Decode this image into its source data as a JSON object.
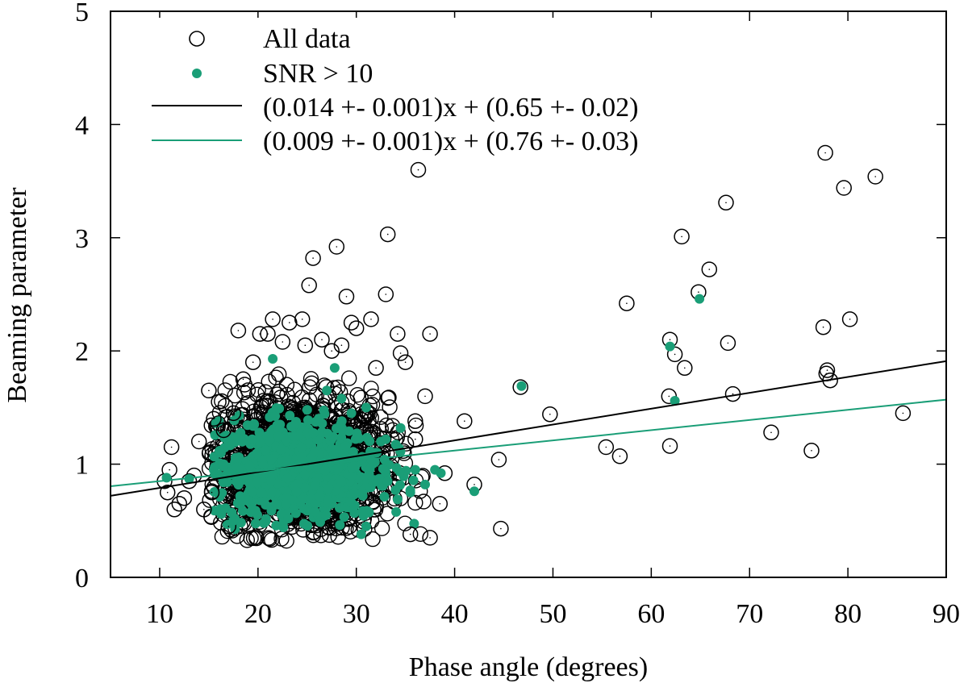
{
  "chart_data": {
    "type": "scatter",
    "xlabel": "Phase angle (degrees)",
    "ylabel": "Beaming parameter",
    "xlim": [
      5,
      90
    ],
    "ylim": [
      0,
      5
    ],
    "xticks": [
      10,
      20,
      30,
      40,
      50,
      60,
      70,
      80,
      90
    ],
    "yticks": [
      0,
      1,
      2,
      3,
      4,
      5
    ],
    "grid": false,
    "legend_position": "top-left",
    "colors": {
      "all_data": "#000000",
      "snr": "#1a9e77",
      "fit_all": "#000000",
      "fit_snr": "#1a9e77"
    },
    "series": [
      {
        "name": "All data",
        "marker": "open-circle",
        "cluster_note": "dense cloud of roughly 2000 points between about 15-37 degrees and beaming 0.3-1.9",
        "points": [
          [
            10.5,
            0.85
          ],
          [
            10.8,
            0.75
          ],
          [
            11.0,
            0.95
          ],
          [
            11.2,
            1.15
          ],
          [
            11.5,
            0.6
          ],
          [
            12.0,
            0.65
          ],
          [
            12.5,
            0.7
          ],
          [
            13.0,
            0.85
          ],
          [
            13.5,
            0.9
          ],
          [
            14.0,
            1.2
          ],
          [
            14.5,
            0.6
          ],
          [
            15.0,
            1.65
          ],
          [
            15.3,
            0.75
          ],
          [
            15.5,
            1.4
          ],
          [
            16.0,
            1.55
          ],
          [
            16.5,
            1.3
          ],
          [
            17.0,
            0.45
          ],
          [
            17.5,
            1.45
          ],
          [
            18.0,
            2.18
          ],
          [
            18.5,
            1.75
          ],
          [
            19.5,
            1.9
          ],
          [
            20.2,
            2.15
          ],
          [
            21.0,
            2.15
          ],
          [
            21.5,
            2.28
          ],
          [
            22.5,
            2.08
          ],
          [
            23.2,
            2.25
          ],
          [
            24.5,
            2.28
          ],
          [
            24.8,
            2.05
          ],
          [
            25.2,
            2.58
          ],
          [
            25.6,
            2.82
          ],
          [
            26.5,
            2.1
          ],
          [
            27.5,
            2.0
          ],
          [
            28.0,
            2.92
          ],
          [
            28.5,
            2.05
          ],
          [
            29.0,
            2.48
          ],
          [
            29.5,
            2.25
          ],
          [
            30.0,
            2.2
          ],
          [
            31.5,
            2.28
          ],
          [
            32.0,
            1.85
          ],
          [
            33.0,
            2.5
          ],
          [
            33.2,
            3.03
          ],
          [
            34.5,
            1.98
          ],
          [
            34.2,
            2.15
          ],
          [
            35.0,
            1.9
          ],
          [
            36.3,
            3.6
          ],
          [
            36.0,
            1.38
          ],
          [
            37.0,
            1.6
          ],
          [
            37.5,
            2.15
          ],
          [
            38.5,
            0.65
          ],
          [
            37.5,
            0.35
          ],
          [
            35.5,
            0.38
          ],
          [
            36.0,
            1.22
          ],
          [
            39.0,
            0.92
          ],
          [
            41.0,
            1.38
          ],
          [
            42.0,
            0.82
          ],
          [
            44.7,
            0.43
          ],
          [
            44.5,
            1.04
          ],
          [
            46.7,
            1.68
          ],
          [
            49.7,
            1.44
          ],
          [
            55.4,
            1.15
          ],
          [
            56.8,
            1.07
          ],
          [
            57.5,
            2.42
          ],
          [
            61.8,
            1.6
          ],
          [
            61.9,
            2.1
          ],
          [
            61.9,
            1.16
          ],
          [
            62.4,
            1.97
          ],
          [
            63.1,
            3.01
          ],
          [
            63.4,
            1.85
          ],
          [
            64.8,
            2.52
          ],
          [
            65.9,
            2.72
          ],
          [
            67.6,
            3.31
          ],
          [
            67.8,
            2.07
          ],
          [
            68.3,
            1.62
          ],
          [
            72.2,
            1.28
          ],
          [
            76.3,
            1.12
          ],
          [
            77.5,
            2.21
          ],
          [
            77.7,
            3.75
          ],
          [
            77.8,
            1.8
          ],
          [
            77.9,
            1.83
          ],
          [
            78.2,
            1.74
          ],
          [
            79.6,
            3.44
          ],
          [
            80.2,
            2.28
          ],
          [
            82.8,
            3.54
          ],
          [
            85.6,
            1.45
          ]
        ]
      },
      {
        "name": "SNR > 10",
        "marker": "filled-circle",
        "cluster_note": "dense cloud of roughly 800 points between about 15-36 degrees and beaming 0.4-1.6",
        "points": [
          [
            10.7,
            0.88
          ],
          [
            13.0,
            0.87
          ],
          [
            15.5,
            0.95
          ],
          [
            16.5,
            1.0
          ],
          [
            17.5,
            0.5
          ],
          [
            21.5,
            1.93
          ],
          [
            25.0,
            1.48
          ],
          [
            27.0,
            1.65
          ],
          [
            27.8,
            1.85
          ],
          [
            28.5,
            1.58
          ],
          [
            29.5,
            1.45
          ],
          [
            31.0,
            1.5
          ],
          [
            32.5,
            1.2
          ],
          [
            33.0,
            1.22
          ],
          [
            34.5,
            1.32
          ],
          [
            30.5,
            0.38
          ],
          [
            31.0,
            0.45
          ],
          [
            35.5,
            0.75
          ],
          [
            36.0,
            0.95
          ],
          [
            37.0,
            0.82
          ],
          [
            38.0,
            0.95
          ],
          [
            38.6,
            0.92
          ],
          [
            42.0,
            0.76
          ],
          [
            46.8,
            1.69
          ],
          [
            61.9,
            2.04
          ],
          [
            62.4,
            1.56
          ],
          [
            64.9,
            2.46
          ]
        ]
      }
    ],
    "fits": [
      {
        "name": "(0.014 +- 0.001)x + (0.65 +- 0.02)",
        "slope": 0.014,
        "intercept": 0.65,
        "color": "#000000"
      },
      {
        "name": "(0.009 +- 0.001)x + (0.76 +- 0.03)",
        "slope": 0.009,
        "intercept": 0.76,
        "color": "#1a9e77"
      }
    ]
  }
}
